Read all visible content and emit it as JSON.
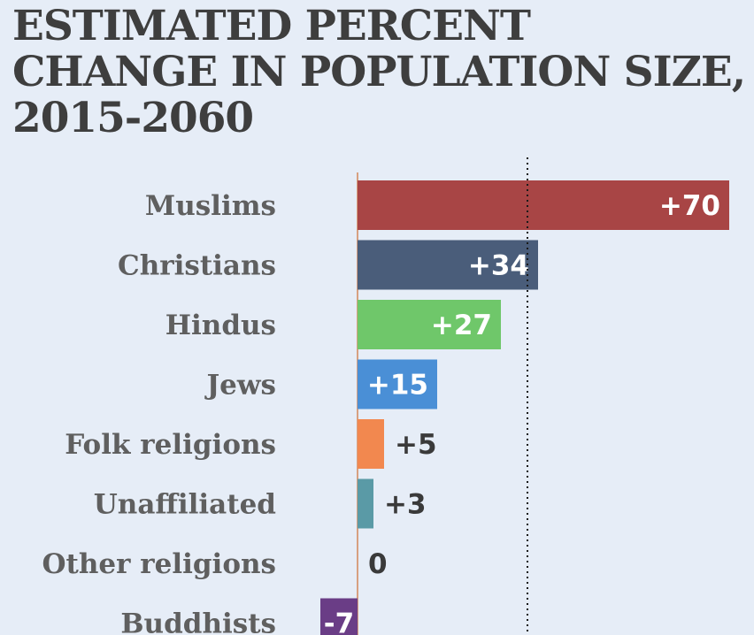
{
  "chart_data": {
    "type": "bar",
    "orientation": "horizontal",
    "title": "ESTIMATED PERCENT CHANGE IN POPULATION SIZE, 2015-2060",
    "xlabel": "",
    "ylabel": "",
    "xlim": [
      -7,
      70
    ],
    "reference_line_value": 32,
    "categories": [
      "Muslims",
      "Christians",
      "Hindus",
      "Jews",
      "Folk religions",
      "Unaffiliated",
      "Other religions",
      "Buddhists"
    ],
    "values": [
      70,
      34,
      27,
      15,
      5,
      3,
      0,
      -7
    ],
    "value_labels": [
      "+70",
      "+34",
      "+27",
      "+15",
      "+5",
      "+3",
      "0",
      "-7"
    ],
    "colors": [
      "#a84545",
      "#4a5d7a",
      "#6fc76a",
      "#4a8fd6",
      "#f2884f",
      "#5a9aa6",
      "#888888",
      "#6a3d86"
    ]
  }
}
